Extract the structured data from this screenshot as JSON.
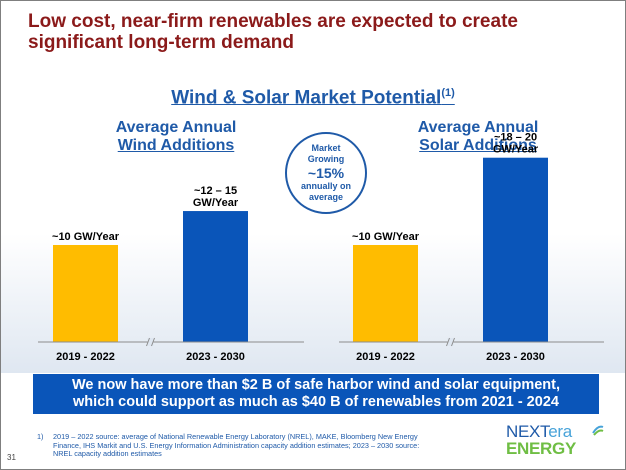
{
  "title": {
    "line1": "Low cost, near-firm renewables are expected to create",
    "line2": "significant long-term demand"
  },
  "section": {
    "title": "Wind & Solar Market Potential",
    "superscript": "(1)"
  },
  "market_circle": {
    "line1": "Market",
    "line2": "Growing",
    "line3": "~15%",
    "line4": "annually on",
    "line5": "average"
  },
  "banner": {
    "line1": "We now have more than $2 B of safe harbor wind and solar equipment,",
    "line2": "which could support as much as $40 B of renewables from 2021 - 2024"
  },
  "footnote": {
    "number": "1)",
    "text": "2019 – 2022 source:  average of National Renewable Energy Laboratory (NREL), MAKE, Bloomberg New Energy Finance, IHS Markit and U.S. Energy Information Administration capacity addition estimates; 2023 – 2030 source: NREL capacity addition estimates"
  },
  "page_number": "31",
  "logo": {
    "next": "NEXT",
    "era": "era",
    "energy": "ENERGY",
    "mark_icon": "nextera-sun-mark-icon"
  },
  "chart_data": [
    {
      "type": "bar",
      "title_line1": "Average Annual",
      "title_line2": "Wind Additions",
      "categories": [
        "2019 - 2022",
        "2023 - 2030"
      ],
      "values": [
        10,
        13.5
      ],
      "data_labels": [
        [
          "~10 GW/Year"
        ],
        [
          "~12 – 15",
          "GW/Year"
        ]
      ],
      "colors": [
        "#ffbc00",
        "#0a55b9"
      ],
      "ylim": [
        0,
        22
      ],
      "axis_break": true,
      "grid": false
    },
    {
      "type": "bar",
      "title_line1": "Average Annual",
      "title_line2": "Solar Additions",
      "categories": [
        "2019 - 2022",
        "2023 - 2030"
      ],
      "values": [
        10,
        19
      ],
      "data_labels": [
        [
          "~10 GW/Year"
        ],
        [
          "~18 – 20",
          "GW/Year"
        ]
      ],
      "colors": [
        "#ffbc00",
        "#0a55b9"
      ],
      "ylim": [
        0,
        22
      ],
      "axis_break": true,
      "grid": false
    }
  ]
}
